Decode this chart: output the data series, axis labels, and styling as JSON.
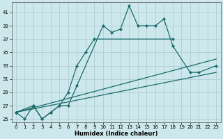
{
  "bg_color": "#cde8ec",
  "grid_color": "#b0cdd4",
  "line_color": "#1a6b6b",
  "xlabel": "Humidex (Indice chaleur)",
  "xlim": [
    -0.5,
    23.5
  ],
  "ylim": [
    24.5,
    42.5
  ],
  "xticks": [
    0,
    1,
    2,
    3,
    4,
    5,
    6,
    7,
    8,
    9,
    10,
    11,
    12,
    13,
    14,
    15,
    16,
    17,
    18,
    19,
    20,
    21,
    22,
    23
  ],
  "yticks": [
    25,
    27,
    29,
    31,
    33,
    35,
    37,
    39,
    41
  ],
  "series1_x": [
    0,
    1,
    2,
    3,
    4,
    5,
    6,
    7,
    10,
    11,
    12,
    13,
    14,
    15,
    16,
    17,
    18,
    20,
    21,
    23
  ],
  "series1_y": [
    26,
    25,
    27,
    25,
    26,
    27,
    27,
    30,
    39,
    38,
    38.5,
    42,
    39,
    39,
    39,
    40,
    36,
    32,
    32,
    33
  ],
  "series2_x": [
    0,
    2,
    3,
    4,
    5,
    6,
    7,
    8,
    9,
    18
  ],
  "series2_y": [
    26,
    27,
    25,
    26,
    27,
    29,
    33,
    35,
    37,
    37
  ],
  "line1_x": [
    0,
    23
  ],
  "line1_y": [
    26,
    32
  ],
  "line2_x": [
    0,
    23
  ],
  "line2_y": [
    26,
    34
  ]
}
